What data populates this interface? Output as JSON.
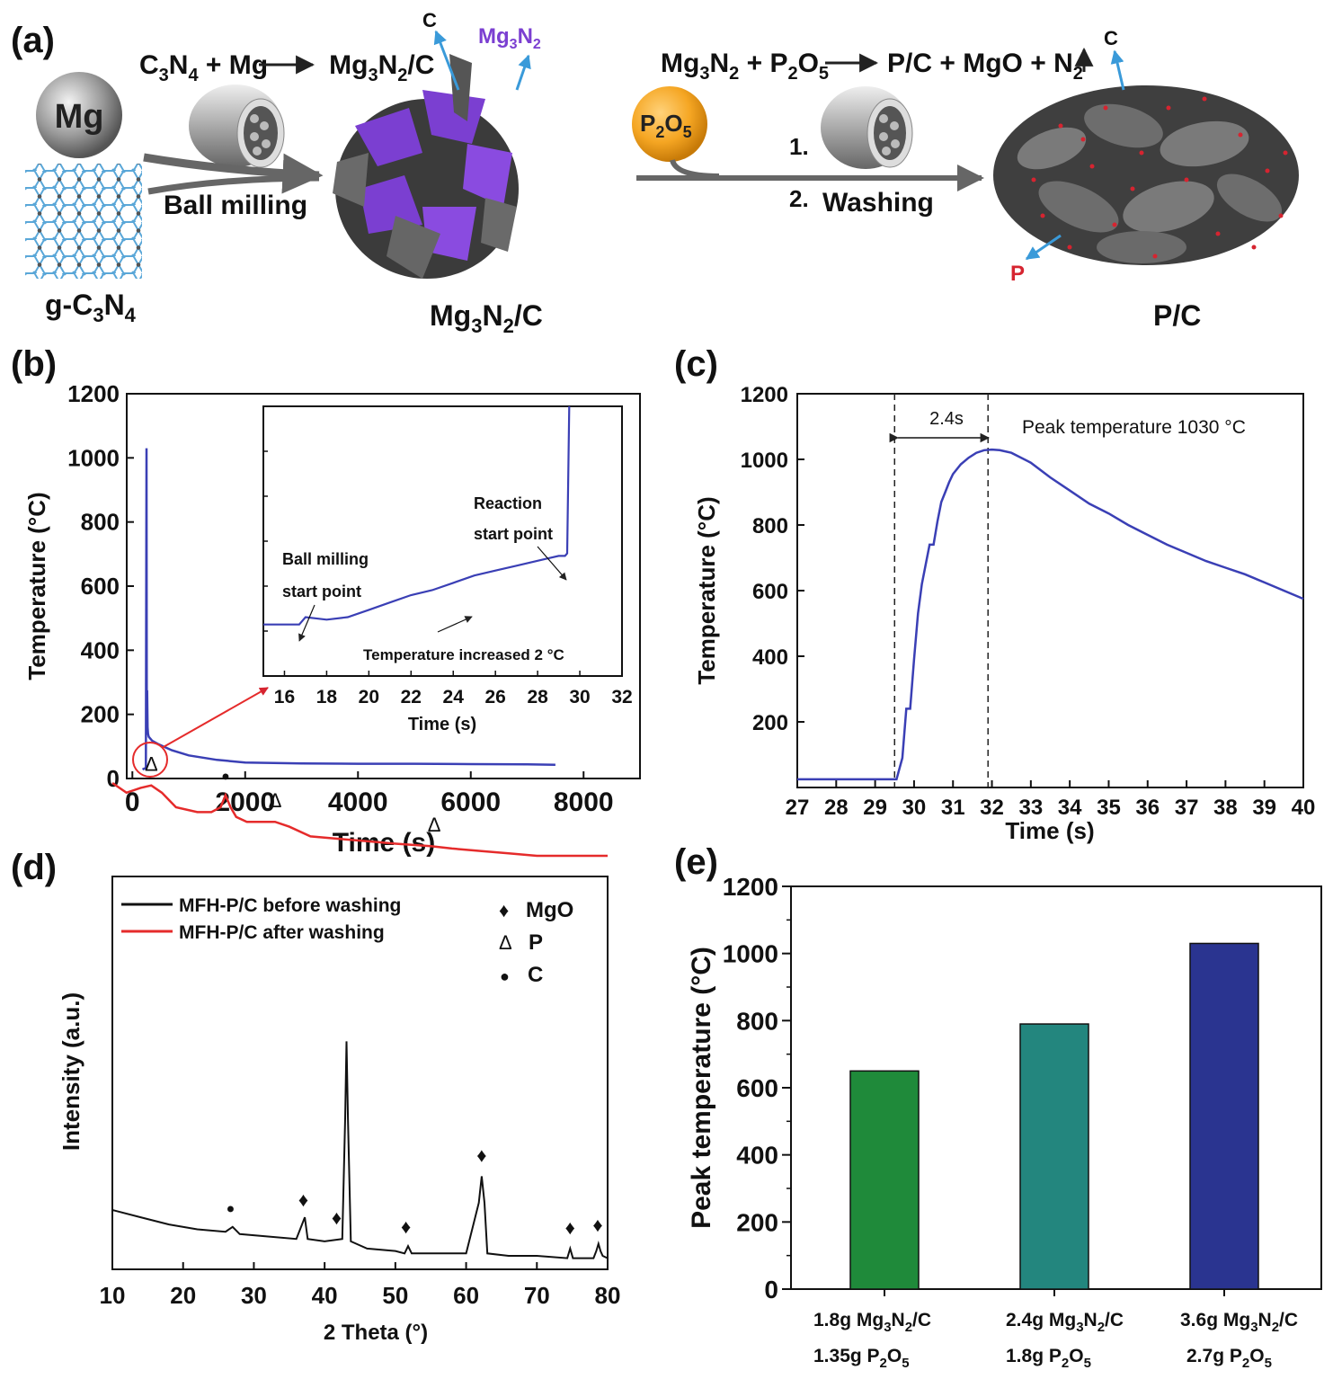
{
  "panel_a": {
    "label": "(a)",
    "mg": "Mg",
    "gc3n4": [
      "g-C",
      "3",
      "N",
      "4"
    ],
    "eq1": [
      "C",
      "3",
      "N",
      "4",
      " + Mg",
      "Mg",
      "3",
      "N",
      "2",
      "/C"
    ],
    "ball_milling": "Ball milling",
    "c_top": "C",
    "mg3n2_tag": [
      "Mg",
      "3",
      "N",
      "2"
    ],
    "mg3n2c": [
      "Mg",
      "3",
      "N",
      "2",
      "/C"
    ],
    "p2o5": [
      "P",
      "2",
      "O",
      "5"
    ],
    "eq2": [
      "Mg",
      "3",
      "N",
      "2",
      " + P",
      "2",
      "O",
      "5",
      "P/C + MgO + N",
      "2"
    ],
    "step1": "1.",
    "step2": "2.",
    "washing": "Washing",
    "c_right": "C",
    "p_tag": "P",
    "pc": "P/C",
    "colors": {
      "mg3n2": "#7b3fd1",
      "arrow_blue": "#3a9ad9",
      "p_red": "#d62430",
      "p2o5": "#f5a623"
    }
  },
  "panel_b": {
    "label": "(b)",
    "inset_annotations": [
      "Reaction",
      "start point",
      "Ball milling",
      "start point",
      "Temperature increased 2 °C"
    ]
  },
  "panel_c": {
    "label": "(c)",
    "interval_label": "2.4s",
    "peak_label": "Peak temperature 1030 °C"
  },
  "panel_d": {
    "label": "(d)"
  },
  "panel_e": {
    "label": "(e)",
    "xlabels": [
      [
        "1.8g Mg",
        "3",
        "N",
        "2",
        "/C"
      ],
      [
        "1.35g P",
        "2",
        "O",
        "5"
      ],
      [
        "2.4g Mg",
        "3",
        "N",
        "2",
        "/C"
      ],
      [
        "1.8g P",
        "2",
        "O",
        "5"
      ],
      [
        "3.6g Mg",
        "3",
        "N",
        "2",
        "/C"
      ],
      [
        "2.7g P",
        "2",
        "O",
        "5"
      ]
    ]
  },
  "chart_data": [
    {
      "id": "b",
      "type": "line",
      "xlabel": "Time (s)",
      "ylabel": "Temperature (°C)",
      "xlim": [
        -100,
        9000
      ],
      "ylim": [
        0,
        1200
      ],
      "xticks": [
        "0",
        "2000",
        "4000",
        "6000",
        "8000"
      ],
      "yticks": [
        "0",
        "200",
        "400",
        "600",
        "800",
        "1000",
        "1200"
      ],
      "series": [
        {
          "color": "#3a3fb5",
          "x": [
            180,
            200,
            230,
            240,
            250,
            255,
            262,
            270,
            278,
            290,
            300,
            350,
            450,
            700,
            1000,
            1500,
            2000,
            3000,
            4000,
            5000,
            6000,
            7000,
            7500
          ],
          "y": [
            28,
            30,
            32,
            35,
            1030,
            170,
            275,
            160,
            140,
            130,
            128,
            118,
            108,
            88,
            72,
            58,
            50,
            47,
            46,
            46,
            45,
            44,
            43
          ]
        }
      ],
      "inset": {
        "xlabel": "Time (s)",
        "xlim": [
          15,
          32
        ],
        "ylim": [
          24.5,
          35.5
        ],
        "xticks": [
          "16",
          "18",
          "20",
          "22",
          "24",
          "26",
          "28",
          "30",
          "32"
        ],
        "series": [
          {
            "color": "#3a3fb5",
            "x": [
              15,
              16,
              16.7,
              17,
              18,
              19,
              20,
              21,
              22,
              23,
              24,
              25,
              26,
              27,
              28,
              28.5,
              29,
              29.3,
              29.4,
              29.5
            ],
            "y": [
              26.6,
              26.6,
              26.6,
              26.9,
              26.8,
              26.9,
              27.2,
              27.5,
              27.8,
              28.0,
              28.3,
              28.6,
              28.8,
              29.0,
              29.2,
              29.3,
              29.4,
              29.4,
              29.5,
              35.5
            ]
          }
        ]
      }
    },
    {
      "id": "c",
      "type": "line",
      "xlabel": "Time (s)",
      "ylabel": "Temperature (°C)",
      "xlim": [
        27,
        40
      ],
      "ylim": [
        0,
        1200
      ],
      "xticks": [
        "27",
        "28",
        "29",
        "30",
        "31",
        "32",
        "33",
        "34",
        "35",
        "36",
        "37",
        "38",
        "39",
        "40"
      ],
      "yticks": [
        "200",
        "400",
        "600",
        "800",
        "1000",
        "1200"
      ],
      "vlines": [
        29.5,
        31.9
      ],
      "series": [
        {
          "color": "#3a3fb5",
          "x": [
            27,
            29.55,
            29.7,
            29.8,
            29.9,
            30.0,
            30.1,
            30.2,
            30.3,
            30.4,
            30.5,
            30.6,
            30.7,
            30.8,
            30.9,
            31.0,
            31.2,
            31.4,
            31.6,
            31.8,
            32.0,
            32.2,
            32.5,
            33.0,
            33.5,
            34.0,
            34.5,
            35.0,
            35.5,
            36.0,
            36.5,
            37.0,
            37.5,
            38.0,
            38.5,
            39.0,
            39.5,
            40.0
          ],
          "y": [
            25,
            25,
            90,
            240,
            240,
            390,
            530,
            620,
            680,
            740,
            740,
            810,
            870,
            900,
            930,
            955,
            985,
            1005,
            1020,
            1028,
            1030,
            1028,
            1020,
            990,
            945,
            905,
            865,
            835,
            800,
            770,
            740,
            715,
            690,
            670,
            650,
            625,
            600,
            575
          ]
        }
      ]
    },
    {
      "id": "d",
      "type": "line",
      "xlabel": "2 Theta (°)",
      "ylabel": "Intensity (a.u.)",
      "xlim": [
        10,
        80
      ],
      "xticks": [
        "10",
        "20",
        "30",
        "40",
        "50",
        "60",
        "70",
        "80"
      ],
      "legend": "top-left",
      "legend_entries": [
        "MFH-P/C before washing",
        "MFH-P/C after washing"
      ],
      "marker_legend": [
        {
          "symbol": "♦",
          "label": "MgO"
        },
        {
          "symbol": "Δ",
          "label": "P"
        },
        {
          "symbol": "●",
          "label": "C"
        }
      ],
      "peak_markers": [
        {
          "symbol": "Δ",
          "x": 15.5,
          "series": "after"
        },
        {
          "symbol": "●",
          "x": 26,
          "series": "after"
        },
        {
          "symbol": "Δ",
          "x": 33,
          "series": "after"
        },
        {
          "symbol": "Δ",
          "x": 55.5,
          "series": "after"
        },
        {
          "symbol": "●",
          "x": 26.7,
          "series": "before"
        },
        {
          "symbol": "♦",
          "x": 37,
          "series": "before"
        },
        {
          "symbol": "♦",
          "x": 41.7,
          "series": "before"
        },
        {
          "symbol": "♦",
          "x": 51.5,
          "series": "before"
        },
        {
          "symbol": "♦",
          "x": 62.2,
          "series": "before"
        },
        {
          "symbol": "♦",
          "x": 74.7,
          "series": "before"
        },
        {
          "symbol": "♦",
          "x": 78.6,
          "series": "before"
        }
      ],
      "series": [
        {
          "name": "MFH-P/C before washing",
          "color": "#111111",
          "x": [
            10,
            14,
            18,
            22,
            26,
            27,
            28,
            32,
            36,
            36.8,
            37.2,
            37.6,
            40,
            42.5,
            42.9,
            43.1,
            43.3,
            43.7,
            46,
            50,
            51.3,
            51.8,
            52.3,
            56,
            60,
            61.8,
            62.2,
            62.6,
            63,
            66,
            70,
            74.3,
            74.7,
            75.1,
            78,
            78.4,
            78.7,
            79,
            79.3,
            80
          ],
          "y": [
            0.22,
            0.19,
            0.16,
            0.14,
            0.13,
            0.15,
            0.12,
            0.11,
            0.1,
            0.16,
            0.19,
            0.1,
            0.09,
            0.1,
            0.6,
            0.92,
            0.6,
            0.09,
            0.06,
            0.05,
            0.04,
            0.07,
            0.04,
            0.04,
            0.04,
            0.25,
            0.36,
            0.25,
            0.04,
            0.03,
            0.03,
            0.02,
            0.06,
            0.02,
            0.02,
            0.05,
            0.08,
            0.05,
            0.03,
            0.02
          ]
        },
        {
          "name": "MFH-P/C after washing",
          "color": "#e52b2b",
          "x": [
            10,
            12,
            14,
            15.5,
            17,
            19,
            22,
            24,
            25.3,
            26,
            26.7,
            27.5,
            29,
            31,
            33,
            35,
            38,
            42,
            46,
            50,
            55,
            58,
            62,
            66,
            70,
            75,
            80
          ],
          "y": [
            1.1,
            1.08,
            1.09,
            1.095,
            1.08,
            1.05,
            1.04,
            1.04,
            1.05,
            1.075,
            1.05,
            1.03,
            1.02,
            1.02,
            1.02,
            1.01,
            0.99,
            0.985,
            0.98,
            0.975,
            0.97,
            0.965,
            0.96,
            0.955,
            0.95,
            0.95,
            0.95
          ]
        }
      ]
    },
    {
      "id": "e",
      "type": "bar",
      "ylabel": "Peak temperature (°C)",
      "ylim": [
        0,
        1200
      ],
      "yticks": [
        "0",
        "200",
        "400",
        "600",
        "800",
        "1000",
        "1200"
      ],
      "categories": [
        "1.8g Mg3N2/C 1.35g P2O5",
        "2.4g Mg3N2/C 1.8g P2O5",
        "3.6g Mg3N2/C 2.7g P2O5"
      ],
      "values": [
        650,
        790,
        1030
      ],
      "colors": [
        "#1f8a3a",
        "#23867e",
        "#2a3490"
      ]
    }
  ]
}
